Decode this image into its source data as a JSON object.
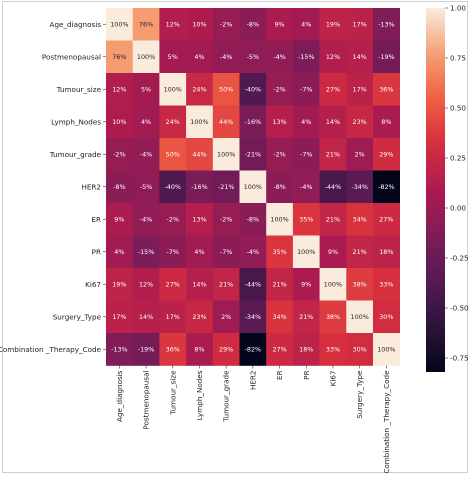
{
  "chart_data": {
    "type": "heatmap",
    "title": "",
    "xlabel": "",
    "ylabel": "",
    "labels": [
      "Age_diagnosis",
      "Postmenopausal",
      "Tumour_size",
      "Lymph_Nodes",
      "Tumour_grade",
      "HER2",
      "ER",
      "PR",
      "Ki67",
      "Surgery_Type",
      "Combination _Therapy_Code"
    ],
    "values": [
      [
        1.0,
        0.76,
        0.12,
        0.1,
        -0.02,
        -0.08,
        0.09,
        0.04,
        0.19,
        0.17,
        -0.13
      ],
      [
        0.76,
        1.0,
        0.05,
        0.04,
        -0.04,
        -0.05,
        -0.04,
        -0.15,
        0.12,
        0.14,
        -0.19
      ],
      [
        0.12,
        0.05,
        1.0,
        0.24,
        0.5,
        -0.4,
        -0.02,
        -0.07,
        0.27,
        0.17,
        0.36
      ],
      [
        0.1,
        0.04,
        0.24,
        1.0,
        0.44,
        -0.16,
        0.13,
        0.04,
        0.14,
        0.23,
        0.08
      ],
      [
        -0.02,
        -0.04,
        0.5,
        0.44,
        1.0,
        -0.21,
        -0.02,
        -0.07,
        0.21,
        0.02,
        0.29
      ],
      [
        -0.08,
        -0.05,
        -0.4,
        -0.16,
        -0.21,
        1.0,
        -0.08,
        -0.04,
        -0.44,
        -0.34,
        -0.82
      ],
      [
        0.09,
        -0.04,
        -0.02,
        0.13,
        -0.02,
        -0.08,
        1.0,
        0.35,
        0.21,
        0.34,
        0.27
      ],
      [
        0.04,
        -0.15,
        -0.07,
        0.04,
        -0.07,
        -0.04,
        0.35,
        1.0,
        0.09,
        0.21,
        0.18
      ],
      [
        0.19,
        0.12,
        0.27,
        0.14,
        0.21,
        -0.44,
        0.21,
        0.09,
        1.0,
        0.38,
        0.33
      ],
      [
        0.17,
        0.14,
        0.17,
        0.23,
        0.02,
        -0.34,
        0.34,
        0.21,
        0.38,
        1.0,
        0.3
      ],
      [
        -0.13,
        -0.19,
        0.36,
        0.08,
        0.29,
        -0.82,
        0.27,
        0.18,
        0.33,
        0.3,
        1.0
      ]
    ],
    "annotation_format": "percent",
    "colormap": "rocket",
    "vmin": -0.82,
    "vmax": 1.0,
    "colorbar": {
      "position": "right",
      "ticks": [
        "1.00",
        "0.75",
        "0.50",
        "0.25",
        "0.00",
        "-0.25",
        "-0.50",
        "-0.75"
      ]
    }
  }
}
